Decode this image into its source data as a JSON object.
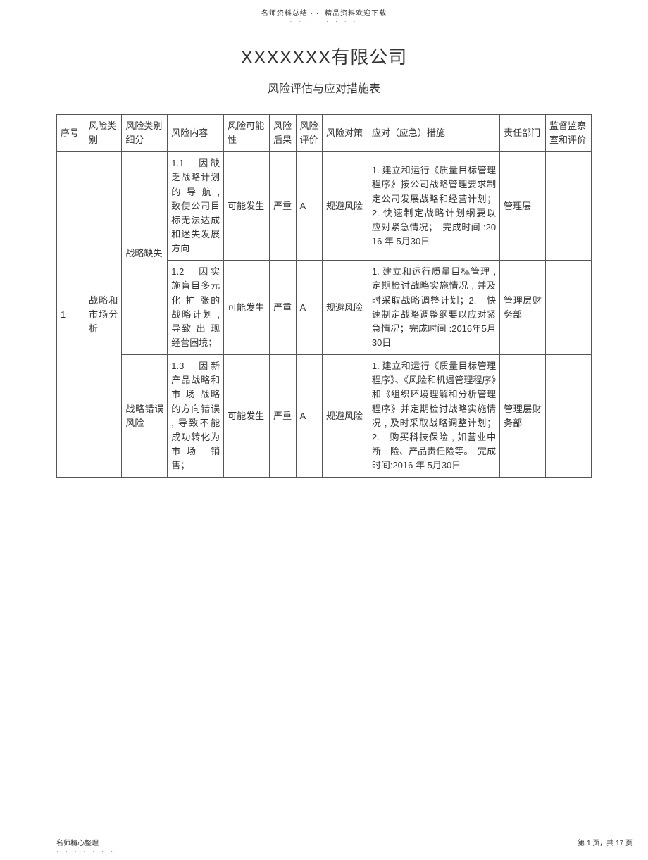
{
  "page": {
    "top_header": "名师资料总结 · · ·精品资料欢迎下载",
    "top_dots": "· · · · · · · ·",
    "title": "XXXXXXX有限公司",
    "subtitle": "风险评估与应对措施表",
    "footer_left": "名师精心整理",
    "footer_left_dots": "· · · · · · ·",
    "footer_right": "第 1 页，共 17 页"
  },
  "columns": {
    "c1": "序号",
    "c2": "风险类别",
    "c3": "风险类别细分",
    "c4": "风险内容",
    "c5": "风险可能性",
    "c6": "风险后果",
    "c7": "风险评价",
    "c8": "风险对策",
    "c9": "应对（应急）措施",
    "c10": "责任部门",
    "c11": "监督监察室和评价"
  },
  "col_widths": {
    "c1": "32px",
    "c2": "42px",
    "c3": "52px",
    "c4": "64px",
    "c5": "52px",
    "c6": "30px",
    "c7": "30px",
    "c8": "52px",
    "c9": "150px",
    "c10": "52px",
    "c11": "52px"
  },
  "rows": [
    {
      "seq": "1",
      "category": "战略和市场分析",
      "sub": "战略缺失",
      "content": "1.1　因缺乏战略计划的 导 航 , 致使公司目标无法达成和迷失发展方向",
      "possibility": "可能发生",
      "consequence": "严重",
      "eval": "A",
      "policy": "规避风险",
      "measures": "1. 建立和运行《质量目标管理程序》按公司战略管理要求制定公司发展战略和经营计划；2. 快速制定战略计划纲要以　应对紧急情况；　完成时间 :2016 年 5月30日",
      "dept": "管理层",
      "supervise": ""
    },
    {
      "sub": "",
      "content": "1.2　因实施盲目多元化 扩 张的战略计划 , 导致 出 现经营困境；",
      "possibility": "可能发生",
      "consequence": "严重",
      "eval": "A",
      "policy": "规避风险",
      "measures": "1. 建立和运行质量目标管理 , 定期检讨战略实施情况 , 并及时采取战略调整计划；2.　快速制定战略调整纲要以应对紧急情况；完成时间 :2016年5月30日",
      "dept": "管理层财务部",
      "supervise": ""
    },
    {
      "sub": "战略错误风险",
      "content": "1.3　因新产品战略和市 场 战略的方向错误 , 导致不能成功转化为市场 销 售；",
      "possibility": "可能发生",
      "consequence": "严重",
      "eval": "A",
      "policy": "规避风险",
      "measures": "1. 建立和运行《质量目标管理程序》、《风险和机遇管理程序》和《组织环境理解和分析管理程序》并定期检讨战略实施情况 , 及时采取战略调整计划；2.　购买科技保险 , 如营业中断　险、产品责任险等。　完成时间:2016 年 5月30日",
      "dept": "管理层财务部",
      "supervise": ""
    }
  ],
  "style": {
    "border_color": "#555555",
    "font_size_body": 13,
    "font_size_title": 26,
    "font_size_subtitle": 16,
    "background": "#ffffff"
  }
}
